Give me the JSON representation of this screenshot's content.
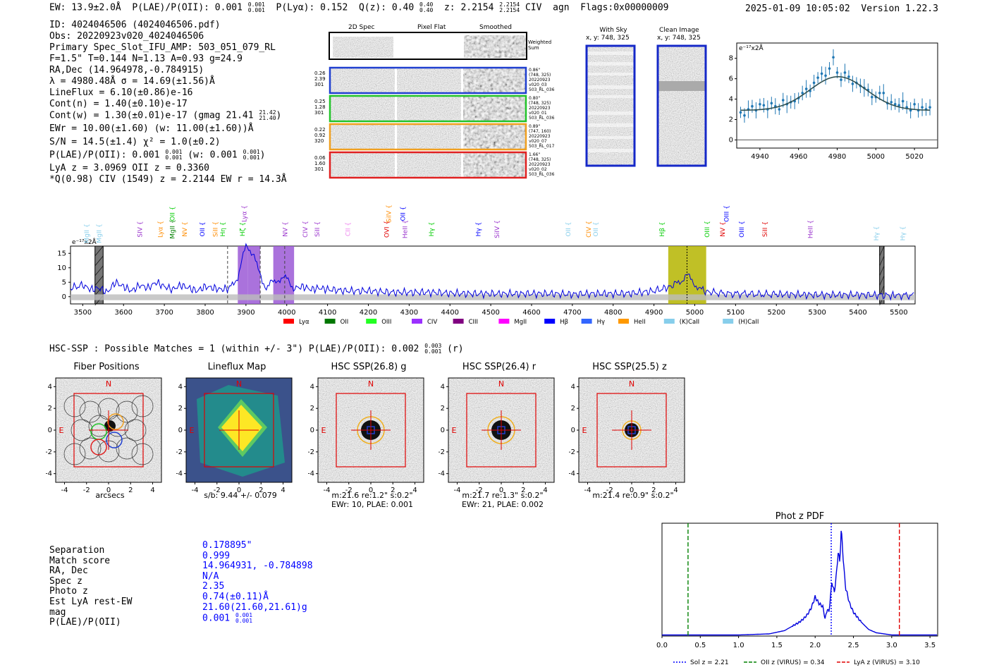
{
  "header": {
    "ew": "EW: 13.9±2.0Å",
    "plae_label": "P(LAE)/P(OII): 0.001",
    "plae_hi": "0.001",
    "plae_lo": "0.001",
    "plya": "P(Lyα): 0.152",
    "qz_label": "Q(z): 0.40",
    "qz_hi": "0.40",
    "qz_lo": "0.40",
    "z_label": "z: 2.2154",
    "z_hi": "2.2154",
    "z_lo": "2.2154",
    "civ": "CIV",
    "agn": "agn",
    "flags": "Flags:0x00000009",
    "timestamp": "2025-01-09 10:05:02",
    "version": "Version 1.22.3"
  },
  "info": {
    "id": "ID: 4024046506 (4024046506.pdf)",
    "obs": "Obs: 20220923v020_4024046506",
    "primary": "Primary Spec_Slot_IFU_AMP: 503_051_079_RL",
    "fparams": "F=1.5\"  T=0.144  N=1.13  A=0.93  g=24.9",
    "radec": "RA,Dec (14.964978,-0.784915)",
    "lambda": "λ = 4980.48Å  σ = 14.69(±1.56)Å",
    "lineflux": "LineFlux = 6.10(±0.86)e-16",
    "contn": "Cont(n) = 1.40(±0.10)e-17",
    "contw": "Cont(w) = 1.30(±0.01)e-17 (gmag 21.41",
    "gmag_hi": "21.42",
    "gmag_lo": "21.40",
    "ewr": "EWr = 10.00(±1.60) (w: 11.00(±1.60))Å",
    "sn": "S/N = 14.5(±1.4)  χ² = 1.0(±0.2)",
    "plae": "P(LAE)/P(OII): 0.001",
    "plae_hi": "0.001",
    "plae_lo": "0.001",
    "plae_w": "(w: 0.001",
    "plae_w_hi": "0.001",
    "plae_w_lo": "0.001",
    "lya": "LyA z = 3.0969  OII z = 0.3360",
    "civline": "*Q(0.98) CIV (1549) z = 2.2144  EW r = 14.3Å"
  },
  "cutouts": {
    "col_titles": [
      "2D Spec",
      "Pixel Flat",
      "Smoothed"
    ],
    "weighted": "Weighted Sum",
    "rows": [
      {
        "left": [
          "0.26",
          "2.39",
          "301"
        ],
        "right": [
          "0.86\"",
          "(748, 325)",
          "20220923",
          "v020_03",
          "503_RL_036"
        ],
        "color": "#1f3fd0"
      },
      {
        "left": [
          "0.25",
          "1.28",
          "301"
        ],
        "right": [
          "0.80\"",
          "(748, 325)",
          "20220923",
          "v020_01",
          "503_RL_036"
        ],
        "color": "#22c42a"
      },
      {
        "left": [
          "0.22",
          "0.92",
          "320"
        ],
        "right": [
          "0.89\"",
          "(747, 160)",
          "20220923",
          "v020_07",
          "503_RL_017"
        ],
        "color": "#f0a020"
      },
      {
        "left": [
          "0.06",
          "1.60",
          "301"
        ],
        "right": [
          "1.66\"",
          "(748, 325)",
          "20220923",
          "v020_02",
          "503_RL_036"
        ],
        "color": "#e02020"
      }
    ],
    "sky_title": "With Sky",
    "sky_xy": "x, y: 748, 325",
    "clean_title": "Clean Image",
    "clean_xy": "x, y: 748, 325"
  },
  "zoom_chart": {
    "type": "scatter",
    "ylabel": "e⁻¹⁷x2Å",
    "xlim": [
      4928,
      5032
    ],
    "ylim": [
      -0.8,
      9.5
    ],
    "xticks": [
      "4940",
      "4960",
      "4980",
      "5000",
      "5020"
    ],
    "yticks": [
      "0",
      "2",
      "4",
      "6",
      "8"
    ],
    "x": [
      4930,
      4932,
      4934,
      4936,
      4938,
      4940,
      4942,
      4944,
      4946,
      4948,
      4950,
      4952,
      4954,
      4956,
      4958,
      4960,
      4962,
      4964,
      4966,
      4968,
      4970,
      4972,
      4974,
      4976,
      4978,
      4980,
      4982,
      4984,
      4986,
      4988,
      4990,
      4992,
      4994,
      4996,
      4998,
      5000,
      5002,
      5004,
      5006,
      5008,
      5010,
      5012,
      5014,
      5016,
      5018,
      5020,
      5022,
      5024,
      5026,
      5028
    ],
    "y": [
      2.7,
      2.4,
      3.0,
      3.3,
      2.9,
      3.5,
      3.4,
      3.0,
      3.6,
      3.3,
      3.0,
      3.9,
      3.5,
      3.7,
      3.8,
      4.1,
      4.6,
      5.0,
      4.8,
      5.6,
      6.1,
      6.5,
      6.3,
      7.0,
      8.1,
      6.6,
      5.9,
      6.6,
      6.2,
      5.5,
      5.6,
      5.3,
      5.1,
      4.9,
      4.2,
      4.2,
      4.6,
      4.6,
      3.6,
      3.7,
      3.5,
      3.4,
      3.8,
      3.2,
      2.9,
      3.5,
      2.9,
      3.2,
      3.0,
      3.2
    ],
    "fit": {
      "amplitude": 3.3,
      "center": 4980.48,
      "sigma": 14.69,
      "continuum": 2.9
    }
  },
  "spectrum": {
    "type": "line",
    "ylabel": "e⁻¹⁷x2Å",
    "xlim": [
      3470,
      5540
    ],
    "ylim": [
      -2.5,
      17.5
    ],
    "xticks": [
      "3500",
      "3600",
      "3700",
      "3800",
      "3900",
      "4000",
      "4100",
      "4200",
      "4300",
      "4400",
      "4500",
      "4600",
      "4700",
      "4800",
      "4900",
      "5000",
      "5100",
      "5200",
      "5300",
      "5400",
      "5500"
    ],
    "yticks": [
      "0",
      "5",
      "10",
      "15"
    ],
    "x": [
      3470,
      3500,
      3520,
      3540,
      3560,
      3580,
      3600,
      3620,
      3640,
      3660,
      3680,
      3700,
      3720,
      3740,
      3760,
      3780,
      3800,
      3820,
      3840,
      3860,
      3870,
      3880,
      3890,
      3900,
      3910,
      3920,
      3930,
      3940,
      3950,
      3960,
      3970,
      3980,
      3990,
      4000,
      4010,
      4020,
      4040,
      4060,
      4080,
      4100,
      4150,
      4200,
      4250,
      4300,
      4350,
      4400,
      4450,
      4500,
      4550,
      4600,
      4650,
      4700,
      4750,
      4800,
      4850,
      4900,
      4930,
      4950,
      4960,
      4970,
      4980,
      4990,
      5000,
      5010,
      5020,
      5040,
      5080,
      5120,
      5160,
      5200,
      5250,
      5300,
      5350,
      5400,
      5450,
      5480,
      5500,
      5540
    ],
    "y": [
      3,
      4,
      2.5,
      3,
      1.5,
      5,
      3.5,
      2,
      4,
      3,
      5,
      3.5,
      2.5,
      4,
      3,
      2,
      3.5,
      3,
      2.5,
      3,
      4,
      7,
      13,
      17,
      16,
      15,
      9,
      5,
      3.5,
      5,
      4.5,
      6,
      7,
      6,
      4,
      3,
      3.5,
      2.5,
      3,
      2.5,
      2,
      2,
      1.5,
      1.5,
      1.5,
      1.2,
      1,
      1,
      1,
      1,
      1,
      0.8,
      1,
      1,
      1.2,
      2,
      3,
      4,
      5,
      6,
      7.5,
      6,
      4.5,
      3,
      2,
      1.5,
      1,
      1,
      0.8,
      0.8,
      0.7,
      0.6,
      0.6,
      0.6,
      0.5,
      0.4,
      0.5,
      0.4
    ],
    "highlights": [
      {
        "x0": 3880,
        "x1": 3905,
        "color": "#9b59d6"
      },
      {
        "x0": 3905,
        "x1": 3935,
        "color": "#9b59d6"
      },
      {
        "x0": 3967,
        "x1": 4018,
        "color": "#9b59d6"
      },
      {
        "x0": 4935,
        "x1": 5028,
        "color": "#b5b500"
      }
    ],
    "bad_regions": [
      {
        "x0": 3530,
        "x1": 3550
      },
      {
        "x0": 5453,
        "x1": 5464
      }
    ],
    "dashed": [
      3855,
      3935,
      3995
    ],
    "dotted": [
      4981
    ],
    "line_labels": [
      {
        "label": "MgII",
        "x": 3510,
        "tier": 2,
        "color": "#87ceeb"
      },
      {
        "label": "MgII",
        "x": 3540,
        "tier": 2,
        "color": "#87ceeb"
      },
      {
        "label": "SIV",
        "x": 3640,
        "tier": 1,
        "color": "#9932cc"
      },
      {
        "label": "Lyα",
        "x": 3690,
        "tier": 1,
        "color": "#ff8c00"
      },
      {
        "label": "MgII",
        "x": 3720,
        "tier": 1,
        "color": "#008000"
      },
      {
        "label": "NV",
        "x": 3750,
        "tier": 1,
        "color": "#ff8c00"
      },
      {
        "label": "OII",
        "x": 3793,
        "tier": 1,
        "color": "#0000ff"
      },
      {
        "label": "SiII",
        "x": 3825,
        "tier": 1,
        "color": "#ff8c00"
      },
      {
        "label": "Hη",
        "x": 3843,
        "tier": 1,
        "color": "#00cc00"
      },
      {
        "label": "OII",
        "x": 3720,
        "tier": 0,
        "color": "#00cc00"
      },
      {
        "label": "Lyα",
        "x": 3896,
        "tier": 0,
        "color": "#9932cc"
      },
      {
        "label": "Hζ",
        "x": 3892,
        "tier": 1,
        "color": "#00cc00"
      },
      {
        "label": "NV",
        "x": 3996,
        "tier": 1,
        "color": "#9932cc"
      },
      {
        "label": "CIV",
        "x": 4045,
        "tier": 1,
        "color": "#9932cc"
      },
      {
        "label": "SiII",
        "x": 4075,
        "tier": 1,
        "color": "#9932cc"
      },
      {
        "label": "CII",
        "x": 4150,
        "tier": 1,
        "color": "#ee82ee"
      },
      {
        "label": "SiIV",
        "x": 4250,
        "tier": 0,
        "color": "#ff8c00"
      },
      {
        "label": "OII",
        "x": 4285,
        "tier": 0,
        "color": "#0000ff"
      },
      {
        "label": "OVI",
        "x": 4245,
        "tier": 1,
        "color": "#e00000"
      },
      {
        "label": "HeII",
        "x": 4290,
        "tier": 1,
        "color": "#9932cc"
      },
      {
        "label": "Hγ",
        "x": 4355,
        "tier": 1,
        "color": "#00cc00"
      },
      {
        "label": "Hγ",
        "x": 4470,
        "tier": 1,
        "color": "#0000ff"
      },
      {
        "label": "SiIV",
        "x": 4515,
        "tier": 1,
        "color": "#9932cc"
      },
      {
        "label": "OII",
        "x": 4690,
        "tier": 1,
        "color": "#87ceeb"
      },
      {
        "label": "CIV",
        "x": 4740,
        "tier": 1,
        "color": "#ff8c00"
      },
      {
        "label": "OII",
        "x": 4757,
        "tier": 1,
        "color": "#87ceeb"
      },
      {
        "label": "Hβ",
        "x": 4920,
        "tier": 1,
        "color": "#00cc00"
      },
      {
        "label": "OIII",
        "x": 5030,
        "tier": 1,
        "color": "#00cc00"
      },
      {
        "label": "NV",
        "x": 5068,
        "tier": 1,
        "color": "#e00000"
      },
      {
        "label": "OIII",
        "x": 5078,
        "tier": 0,
        "color": "#0000ff"
      },
      {
        "label": "OIII",
        "x": 5115,
        "tier": 1,
        "color": "#0000ff"
      },
      {
        "label": "SiII",
        "x": 5172,
        "tier": 1,
        "color": "#e00000"
      },
      {
        "label": "HeII",
        "x": 5283,
        "tier": 1,
        "color": "#9932cc"
      },
      {
        "label": "Hγ",
        "x": 5445,
        "tier": 2,
        "color": "#87ceeb"
      },
      {
        "label": "Hγ",
        "x": 5510,
        "tier": 2,
        "color": "#87ceeb"
      }
    ],
    "legend": [
      {
        "label": "Lyα",
        "color": "#ff0000"
      },
      {
        "label": "OII",
        "color": "#007700"
      },
      {
        "label": "OIII",
        "color": "#22ff22"
      },
      {
        "label": "CIV",
        "color": "#9b30ff"
      },
      {
        "label": "CIII",
        "color": "#800080"
      },
      {
        "label": "MgII",
        "color": "#ff00ff"
      },
      {
        "label": "Hβ",
        "color": "#0000ff"
      },
      {
        "label": "Hγ",
        "color": "#3366ff"
      },
      {
        "label": "HeII",
        "color": "#ff9900"
      },
      {
        "label": "(K)CaII",
        "color": "#87ceeb"
      },
      {
        "label": "(H)CaII",
        "color": "#87ceeb"
      }
    ]
  },
  "hsc": {
    "title": "HSC-SSP : Possible Matches = 1 (within +/- 3\")  P(LAE)/P(OII): 0.002",
    "title_hi": "0.003",
    "title_lo": "0.001",
    "title_band": "(r)",
    "axis_ticks": [
      "-4",
      "-2",
      "0",
      "2",
      "4"
    ],
    "panels": [
      {
        "title": "Fiber Positions",
        "caption": [
          "arcsecs"
        ]
      },
      {
        "title": "Lineflux Map",
        "caption": [
          "s/b: 9.44 +/- 0.079"
        ]
      },
      {
        "title": "HSC SSP(26.8) g",
        "caption": [
          "m:21.6  re:1.2\"  s:0.2\"",
          "EWr: 10, PLAE: 0.001"
        ]
      },
      {
        "title": "HSC SSP(26.4) r",
        "caption": [
          "m:21.7  re:1.3\"  s:0.2\"",
          "EWr: 21, PLAE: 0.002"
        ]
      },
      {
        "title": "HSC SSP(25.5) z",
        "caption": [
          "m:21.4  re:0.9\"  s:0.2\""
        ]
      }
    ],
    "north": "N",
    "east": "E"
  },
  "match": {
    "labels": [
      "Separation",
      "Match score",
      "RA, Dec",
      "Spec z",
      "Photo z",
      "Est LyA rest-EW",
      "mag",
      "P(LAE)/P(OII)"
    ],
    "values": [
      "0.178895\"",
      "0.999",
      "14.964931, -0.784898",
      "N/A",
      "2.35",
      "0.74(±0.11)Å",
      "21.60(21.60,21.61)g",
      "0.001"
    ],
    "plae_hi": "0.001",
    "plae_lo": "0.001"
  },
  "pdf_chart": {
    "type": "line",
    "title": "Phot z PDF",
    "xlim": [
      0,
      3.6
    ],
    "xticks": [
      "0.0",
      "0.5",
      "1.0",
      "1.5",
      "2.0",
      "2.5",
      "3.0",
      "3.5"
    ],
    "x": [
      0,
      0.5,
      1.0,
      1.4,
      1.6,
      1.7,
      1.8,
      1.85,
      1.9,
      1.95,
      2.0,
      2.05,
      2.1,
      2.13,
      2.16,
      2.18,
      2.2,
      2.22,
      2.25,
      2.28,
      2.3,
      2.32,
      2.34,
      2.36,
      2.38,
      2.4,
      2.45,
      2.5,
      2.6,
      2.7,
      2.8,
      3.0,
      3.6
    ],
    "y": [
      0.01,
      0.01,
      0.01,
      0.02,
      0.05,
      0.09,
      0.13,
      0.16,
      0.2,
      0.26,
      0.36,
      0.3,
      0.27,
      0.16,
      0.25,
      0.22,
      0.36,
      0.5,
      0.4,
      0.58,
      0.78,
      0.68,
      0.96,
      0.8,
      0.58,
      0.44,
      0.3,
      0.22,
      0.13,
      0.06,
      0.03,
      0.01,
      0.01
    ],
    "markers": [
      {
        "x": 2.21,
        "color": "#0000ff",
        "style": "dotted",
        "label": "Sol z = 2.21"
      },
      {
        "x": 0.34,
        "color": "#008000",
        "style": "dashed",
        "label": "OII z (VIRUS) = 0.34"
      },
      {
        "x": 3.1,
        "color": "#e00000",
        "style": "dashed",
        "label": "LyA z (VIRUS) = 3.10"
      }
    ]
  }
}
